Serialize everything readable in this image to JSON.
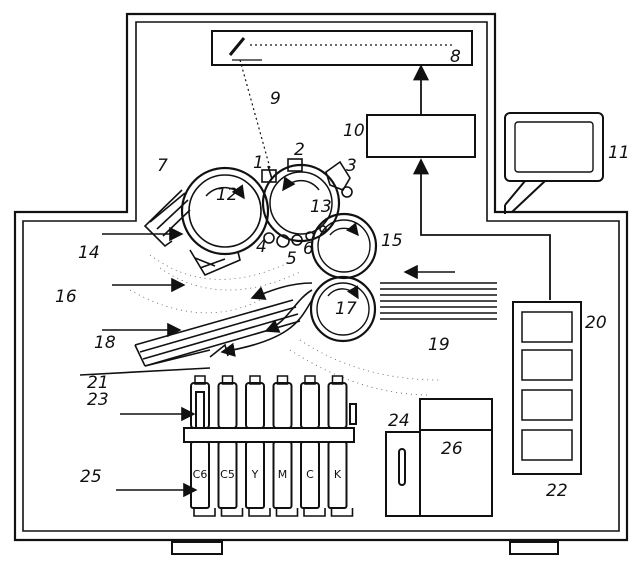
{
  "figure": {
    "kind": "patent schematic of a color printing machine",
    "ink_color": "#111111",
    "background_color": "#ffffff"
  },
  "reference_numerals": {
    "n1": "1",
    "n2": "2",
    "n3": "3",
    "n4": "4",
    "n5": "5",
    "n6": "6",
    "n7": "7",
    "n8": "8",
    "n9": "9",
    "n10": "10",
    "n11": "11",
    "n12": "12",
    "n13": "13",
    "n14": "14",
    "n15": "15",
    "n16": "16",
    "n17": "17",
    "n18": "18",
    "n19": "19",
    "n20": "20",
    "n21": "21",
    "n22": "22",
    "n23": "23",
    "n24": "24",
    "n25": "25",
    "n26": "26"
  },
  "toner_cartridges": [
    "C6",
    "C5",
    "Y",
    "M",
    "C",
    "K"
  ],
  "icons": [
    "monitor-icon",
    "drum-rotation-arrow-icon",
    "paper-stack-icon",
    "laser-mirror-icon"
  ]
}
